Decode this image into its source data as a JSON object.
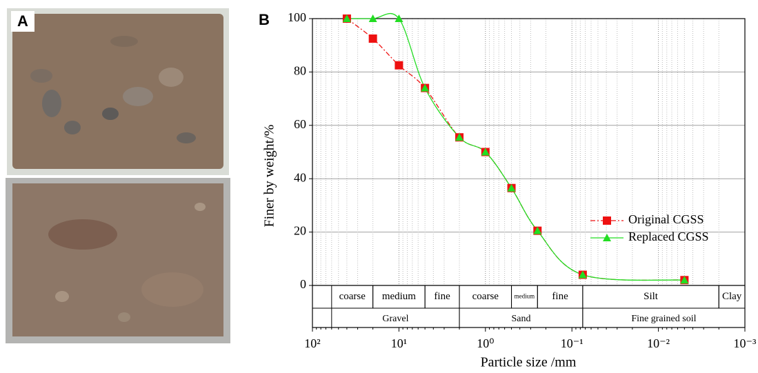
{
  "panel_labels": [
    "A",
    "B"
  ],
  "chart_data": {
    "type": "line",
    "xlabel": "Particle size /mm",
    "ylabel": "Finer by weight/%",
    "xscale": "log",
    "xlim": [
      100,
      0.001
    ],
    "xticks": [
      {
        "value": 100,
        "label": "10²"
      },
      {
        "value": 10,
        "label": "10¹"
      },
      {
        "value": 1,
        "label": "10⁰"
      },
      {
        "value": 0.1,
        "label": "10⁻¹"
      },
      {
        "value": 0.01,
        "label": "10⁻²"
      },
      {
        "value": 0.001,
        "label": "10⁻³"
      }
    ],
    "ylim": [
      0,
      100
    ],
    "yticks": [
      0,
      20,
      40,
      60,
      80,
      100
    ],
    "grid": true,
    "legend": "right",
    "series": [
      {
        "name": "Original CGSS",
        "color": "#ee1111",
        "marker": "square",
        "dash": "dashdot",
        "x": [
          40,
          20,
          10,
          5,
          2,
          1,
          0.5,
          0.25,
          0.075,
          0.005
        ],
        "values": [
          100,
          92.5,
          82.5,
          74,
          55.5,
          50,
          36.5,
          20.5,
          4,
          2
        ]
      },
      {
        "name": "Replaced CGSS",
        "color": "#22dd22",
        "marker": "triangle",
        "dash": "solid",
        "x": [
          40,
          20,
          10,
          5,
          2,
          1,
          0.5,
          0.25,
          0.075,
          0.005
        ],
        "values": [
          100,
          100,
          100,
          74,
          55.5,
          50,
          36.5,
          20.5,
          4,
          2
        ]
      }
    ],
    "soil_classes": {
      "subclasses": [
        {
          "label": "coarse",
          "from": 60,
          "to": 20
        },
        {
          "label": "medium",
          "from": 20,
          "to": 5
        },
        {
          "label": "fine",
          "from": 5,
          "to": 2
        },
        {
          "label": "coarse",
          "from": 2,
          "to": 0.5
        },
        {
          "label": "medium",
          "from": 0.5,
          "to": 0.25
        },
        {
          "label": "fine",
          "from": 0.25,
          "to": 0.075
        },
        {
          "label": "Silt",
          "from": 0.075,
          "to": 0.002
        },
        {
          "label": "Clay",
          "from": 0.002,
          "to": 0.001
        }
      ],
      "classes": [
        {
          "label": "Gravel",
          "from": 60,
          "to": 2
        },
        {
          "label": "Sand",
          "from": 2,
          "to": 0.075
        },
        {
          "label": "Fine grained soil",
          "from": 0.075,
          "to": 0.001
        }
      ]
    }
  }
}
